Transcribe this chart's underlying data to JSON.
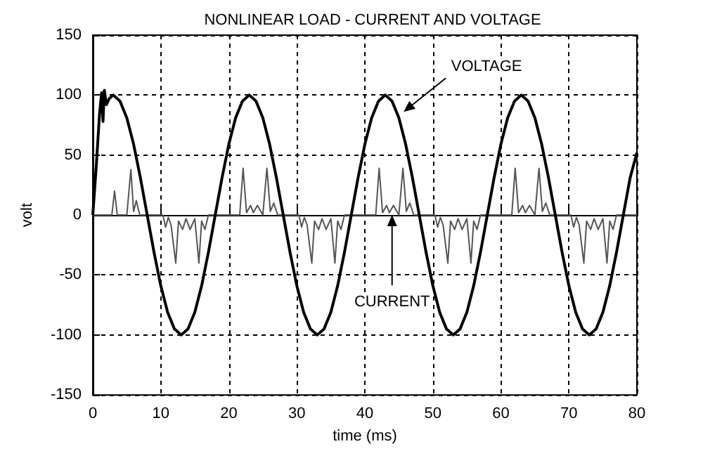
{
  "chart_data": {
    "type": "line",
    "title": "NONLINEAR LOAD - CURRENT AND VOLTAGE",
    "xlabel": "time (ms)",
    "ylabel": "volt",
    "xlim": [
      0,
      80
    ],
    "xticks": [
      0,
      10,
      20,
      30,
      40,
      50,
      60,
      70,
      80
    ],
    "ylim": [
      -150,
      150
    ],
    "yticks": [
      -150,
      -100,
      -50,
      0,
      50,
      100,
      150
    ],
    "grid": true,
    "marker": "none",
    "line_style": "solid",
    "annotations": [
      {
        "text": "VOLTAGE",
        "x": 45.7,
        "y": 86
      },
      {
        "text": "CURRENT",
        "x": 44,
        "y": 0
      }
    ],
    "series": [
      {
        "color": "#000000",
        "x": [
          0,
          0.5,
          1,
          1.3,
          1.5,
          1.7,
          2,
          2.4,
          3,
          4,
          5,
          6,
          7,
          8,
          9,
          10,
          11,
          12,
          13,
          14,
          15,
          16,
          17,
          18,
          19,
          20,
          21,
          22,
          23,
          24,
          25,
          26,
          27,
          28,
          29,
          30,
          31,
          32,
          33,
          34,
          35,
          36,
          37,
          38,
          39,
          40,
          41,
          42,
          43,
          44,
          45,
          46,
          47,
          48,
          49,
          50,
          51,
          52,
          53,
          54,
          55,
          56,
          57,
          58,
          59,
          60,
          61,
          62,
          63,
          64,
          65,
          66,
          67,
          68,
          69,
          70,
          71,
          72,
          73,
          74,
          75,
          76,
          77,
          78,
          79,
          80
        ],
        "values": [
          0,
          40,
          85,
          102,
          78,
          104,
          92,
          97,
          100,
          95,
          81,
          59,
          31,
          0,
          -31,
          -59,
          -81,
          -95,
          -100,
          -95,
          -81,
          -59,
          -31,
          0,
          31,
          59,
          81,
          95,
          100,
          95,
          81,
          59,
          31,
          0,
          -31,
          -59,
          -81,
          -95,
          -100,
          -95,
          -81,
          -59,
          -31,
          0,
          31,
          59,
          81,
          95,
          100,
          95,
          81,
          59,
          31,
          0,
          -31,
          -59,
          -81,
          -95,
          -100,
          -95,
          -81,
          -59,
          -31,
          0,
          31,
          59,
          81,
          95,
          100,
          95,
          81,
          59,
          31,
          0,
          -31,
          -59,
          -81,
          -95,
          -100,
          -95,
          -81,
          -59,
          -31,
          0,
          31,
          52
        ]
      },
      {
        "color": "#555555",
        "x": [
          0,
          2.8,
          3.2,
          3.6,
          5.0,
          5.6,
          6.0,
          6.4,
          6.9,
          10.3,
          10.7,
          11.1,
          11.5,
          12.2,
          12.6,
          13.2,
          13.7,
          14.3,
          15.0,
          15.6,
          16.0,
          16.5,
          17.0,
          21.6,
          22.1,
          22.6,
          23.2,
          23.6,
          24.2,
          25.0,
          25.6,
          26.1,
          26.6,
          27.2,
          30.3,
          30.7,
          31.1,
          31.5,
          32.2,
          32.6,
          33.2,
          33.7,
          34.3,
          35.0,
          35.6,
          36.0,
          36.5,
          37.0,
          41.6,
          42.1,
          42.6,
          43.2,
          43.6,
          44.2,
          45.0,
          45.6,
          46.1,
          46.6,
          47.2,
          50.3,
          50.7,
          51.1,
          51.5,
          52.2,
          52.6,
          53.2,
          53.7,
          54.3,
          55.0,
          55.6,
          56.0,
          56.5,
          57.0,
          61.6,
          62.1,
          62.6,
          63.2,
          63.6,
          64.2,
          65.0,
          65.6,
          66.1,
          66.6,
          67.2,
          70.3,
          70.7,
          71.1,
          71.5,
          72.2,
          72.6,
          73.2,
          73.7,
          74.3,
          75.0,
          75.6,
          76.0,
          76.5,
          77.0,
          80
        ],
        "values": [
          0,
          0,
          20,
          0,
          0,
          38,
          3,
          12,
          0,
          0,
          -10,
          -2,
          -8,
          -40,
          -5,
          -12,
          -3,
          -12,
          -3,
          -40,
          -5,
          -12,
          0,
          0,
          39,
          2,
          8,
          2,
          8,
          0,
          39,
          3,
          10,
          0,
          0,
          -10,
          -2,
          -8,
          -40,
          -5,
          -12,
          -3,
          -12,
          -3,
          -40,
          -5,
          -12,
          0,
          0,
          39,
          2,
          8,
          2,
          8,
          0,
          39,
          3,
          10,
          0,
          0,
          -10,
          -2,
          -8,
          -40,
          -5,
          -12,
          -3,
          -12,
          -3,
          -40,
          -5,
          -12,
          0,
          0,
          39,
          2,
          8,
          2,
          8,
          0,
          39,
          3,
          10,
          0,
          0,
          -10,
          -2,
          -8,
          -40,
          -5,
          -12,
          -3,
          -12,
          -3,
          -40,
          -5,
          -12,
          0,
          0
        ]
      }
    ]
  }
}
